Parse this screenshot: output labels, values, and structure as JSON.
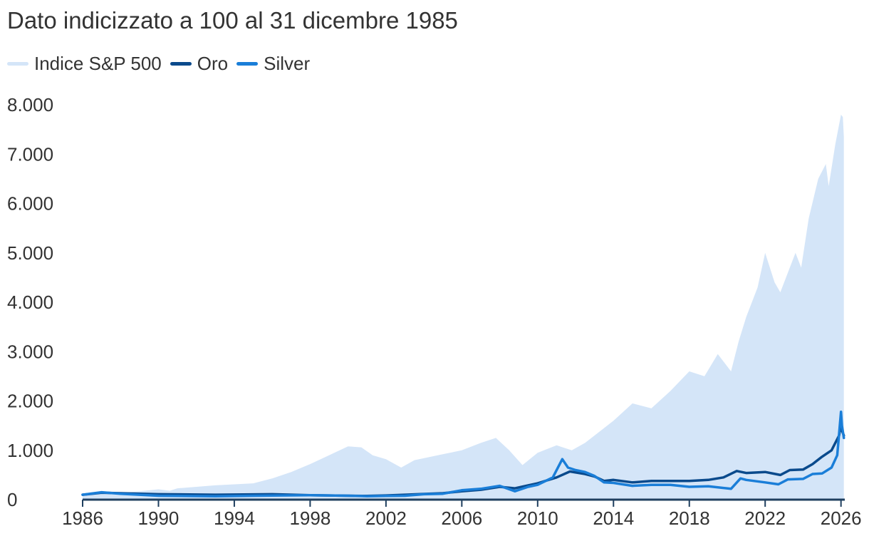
{
  "chart_data": {
    "type": "line",
    "title": "Dato indicizzato a 100 al 31 dicembre 1985",
    "xlabel": "",
    "ylabel": "",
    "xlim": [
      1986,
      2026.2
    ],
    "ylim": [
      0,
      8000
    ],
    "y_ticks": [
      {
        "value": 0,
        "label": "0"
      },
      {
        "value": 1000,
        "label": "1.000"
      },
      {
        "value": 2000,
        "label": "2.000"
      },
      {
        "value": 3000,
        "label": "3.000"
      },
      {
        "value": 4000,
        "label": "4.000"
      },
      {
        "value": 5000,
        "label": "5.000"
      },
      {
        "value": 6000,
        "label": "6.000"
      },
      {
        "value": 7000,
        "label": "7.000"
      },
      {
        "value": 8000,
        "label": "8.000"
      }
    ],
    "x_ticks": [
      {
        "value": 1986,
        "label": "1986"
      },
      {
        "value": 1990,
        "label": "1990"
      },
      {
        "value": 1994,
        "label": "1994"
      },
      {
        "value": 1998,
        "label": "1998"
      },
      {
        "value": 2002,
        "label": "2002"
      },
      {
        "value": 2006,
        "label": "2006"
      },
      {
        "value": 2010,
        "label": "2010"
      },
      {
        "value": 2014,
        "label": "2014"
      },
      {
        "value": 2018,
        "label": "2018"
      },
      {
        "value": 2022,
        "label": "2022"
      },
      {
        "value": 2026,
        "label": "2026"
      }
    ],
    "grid": false,
    "legend_position": "top-left",
    "series": [
      {
        "name": "Indice S&P 500",
        "kind": "area",
        "color": "#d4e5f8",
        "points": [
          [
            1986,
            100
          ],
          [
            1987,
            150
          ],
          [
            1987.8,
            130
          ],
          [
            1989,
            170
          ],
          [
            1990,
            210
          ],
          [
            1990.6,
            180
          ],
          [
            1991,
            230
          ],
          [
            1993,
            290
          ],
          [
            1995,
            330
          ],
          [
            1996,
            430
          ],
          [
            1997,
            560
          ],
          [
            1998,
            720
          ],
          [
            1999,
            900
          ],
          [
            2000,
            1080
          ],
          [
            2000.7,
            1060
          ],
          [
            2001.3,
            900
          ],
          [
            2002,
            820
          ],
          [
            2002.8,
            650
          ],
          [
            2003.5,
            800
          ],
          [
            2005,
            920
          ],
          [
            2006,
            1000
          ],
          [
            2007,
            1150
          ],
          [
            2007.8,
            1250
          ],
          [
            2008.5,
            1000
          ],
          [
            2009.2,
            700
          ],
          [
            2010,
            950
          ],
          [
            2011,
            1100
          ],
          [
            2011.8,
            1000
          ],
          [
            2012.5,
            1150
          ],
          [
            2013,
            1300
          ],
          [
            2014,
            1600
          ],
          [
            2015,
            1950
          ],
          [
            2016,
            1850
          ],
          [
            2017,
            2200
          ],
          [
            2018,
            2600
          ],
          [
            2018.8,
            2500
          ],
          [
            2019.5,
            2950
          ],
          [
            2020.2,
            2600
          ],
          [
            2020.6,
            3200
          ],
          [
            2021,
            3700
          ],
          [
            2021.6,
            4300
          ],
          [
            2022,
            5000
          ],
          [
            2022.5,
            4400
          ],
          [
            2022.8,
            4200
          ],
          [
            2023.2,
            4600
          ],
          [
            2023.6,
            5000
          ],
          [
            2023.9,
            4700
          ],
          [
            2024.3,
            5700
          ],
          [
            2024.8,
            6500
          ],
          [
            2025.2,
            6800
          ],
          [
            2025.35,
            6350
          ],
          [
            2025.7,
            7200
          ],
          [
            2026,
            7800
          ],
          [
            2026.1,
            7750
          ],
          [
            2026.15,
            7350
          ]
        ]
      },
      {
        "name": "Oro",
        "kind": "line",
        "color": "#0a4a8c",
        "points": [
          [
            1986,
            100
          ],
          [
            1987,
            140
          ],
          [
            1988,
            130
          ],
          [
            1990,
            110
          ],
          [
            1993,
            100
          ],
          [
            1996,
            110
          ],
          [
            1998,
            90
          ],
          [
            2000,
            80
          ],
          [
            2001,
            75
          ],
          [
            2002,
            85
          ],
          [
            2003,
            100
          ],
          [
            2004,
            115
          ],
          [
            2005,
            130
          ],
          [
            2006,
            170
          ],
          [
            2007,
            200
          ],
          [
            2008,
            260
          ],
          [
            2008.8,
            230
          ],
          [
            2009.5,
            290
          ],
          [
            2010,
            330
          ],
          [
            2011,
            450
          ],
          [
            2011.7,
            570
          ],
          [
            2012.5,
            520
          ],
          [
            2013,
            470
          ],
          [
            2013.5,
            380
          ],
          [
            2014,
            400
          ],
          [
            2015,
            350
          ],
          [
            2016,
            380
          ],
          [
            2017,
            380
          ],
          [
            2018,
            380
          ],
          [
            2019,
            400
          ],
          [
            2019.8,
            450
          ],
          [
            2020.5,
            580
          ],
          [
            2021,
            540
          ],
          [
            2022,
            560
          ],
          [
            2022.8,
            500
          ],
          [
            2023.3,
            600
          ],
          [
            2024,
            610
          ],
          [
            2024.5,
            720
          ],
          [
            2025,
            870
          ],
          [
            2025.5,
            1000
          ],
          [
            2025.9,
            1300
          ],
          [
            2026,
            1520
          ],
          [
            2026.05,
            1400
          ],
          [
            2026.15,
            1300
          ]
        ]
      },
      {
        "name": "Silver",
        "kind": "line",
        "color": "#1a7ed8",
        "points": [
          [
            1986,
            100
          ],
          [
            1987,
            150
          ],
          [
            1988,
            120
          ],
          [
            1990,
            80
          ],
          [
            1993,
            70
          ],
          [
            1995,
            80
          ],
          [
            1998,
            90
          ],
          [
            2000,
            80
          ],
          [
            2001,
            70
          ],
          [
            2002,
            75
          ],
          [
            2003,
            80
          ],
          [
            2004,
            110
          ],
          [
            2005,
            120
          ],
          [
            2006,
            190
          ],
          [
            2007,
            220
          ],
          [
            2008,
            280
          ],
          [
            2008.8,
            170
          ],
          [
            2009.5,
            260
          ],
          [
            2010,
            300
          ],
          [
            2010.8,
            450
          ],
          [
            2011.3,
            820
          ],
          [
            2011.6,
            650
          ],
          [
            2012,
            600
          ],
          [
            2012.5,
            560
          ],
          [
            2013,
            480
          ],
          [
            2013.5,
            350
          ],
          [
            2014,
            340
          ],
          [
            2015,
            280
          ],
          [
            2016,
            300
          ],
          [
            2017,
            300
          ],
          [
            2018,
            260
          ],
          [
            2019,
            270
          ],
          [
            2020.2,
            220
          ],
          [
            2020.7,
            430
          ],
          [
            2021,
            400
          ],
          [
            2022,
            350
          ],
          [
            2022.7,
            310
          ],
          [
            2023.2,
            410
          ],
          [
            2024,
            420
          ],
          [
            2024.5,
            520
          ],
          [
            2025,
            530
          ],
          [
            2025.5,
            650
          ],
          [
            2025.8,
            900
          ],
          [
            2026,
            1780
          ],
          [
            2026.05,
            1500
          ],
          [
            2026.15,
            1250
          ]
        ]
      }
    ]
  },
  "legend": [
    {
      "label": "Indice S&P 500",
      "color": "#d4e5f8"
    },
    {
      "label": "Oro",
      "color": "#0a4a8c"
    },
    {
      "label": "Silver",
      "color": "#1a7ed8"
    }
  ]
}
